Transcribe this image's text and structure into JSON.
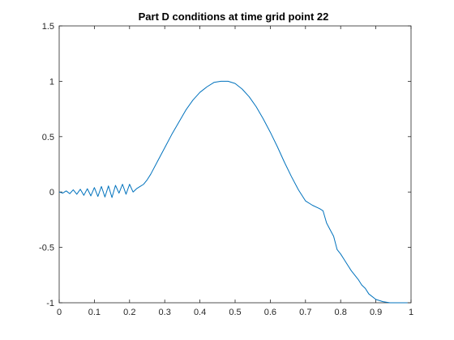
{
  "chart_data": {
    "type": "line",
    "title": "Part D conditions at time grid point 22",
    "xlabel": "",
    "ylabel": "",
    "xlim": [
      0,
      1
    ],
    "ylim": [
      -1,
      1.5
    ],
    "grid": false,
    "x_ticks": [
      0,
      0.1,
      0.2,
      0.3,
      0.4,
      0.5,
      0.6,
      0.7,
      0.8,
      0.9,
      1
    ],
    "x_tick_labels": [
      "0",
      "0.1",
      "0.2",
      "0.3",
      "0.4",
      "0.5",
      "0.6",
      "0.7",
      "0.8",
      "0.9",
      "1"
    ],
    "y_ticks": [
      -1,
      -0.5,
      0,
      0.5,
      1,
      1.5
    ],
    "y_tick_labels": [
      "-1",
      "-0.5",
      "0",
      "0.5",
      "1",
      "1.5"
    ],
    "line_color": "#0072BD",
    "series": [
      {
        "x": [
          0,
          0.01,
          0.02,
          0.03,
          0.04,
          0.05,
          0.06,
          0.07,
          0.08,
          0.09,
          0.1,
          0.11,
          0.12,
          0.13,
          0.14,
          0.15,
          0.16,
          0.17,
          0.18,
          0.19,
          0.2,
          0.21,
          0.22,
          0.23,
          0.24,
          0.25,
          0.26,
          0.28,
          0.3,
          0.32,
          0.34,
          0.36,
          0.38,
          0.4,
          0.42,
          0.44,
          0.46,
          0.48,
          0.5,
          0.52,
          0.54,
          0.56,
          0.58,
          0.6,
          0.62,
          0.64,
          0.66,
          0.68,
          0.7,
          0.72,
          0.74,
          0.75,
          0.76,
          0.77,
          0.78,
          0.79,
          0.8,
          0.81,
          0.82,
          0.83,
          0.84,
          0.85,
          0.86,
          0.87,
          0.88,
          0.9,
          0.92,
          0.94,
          0.96,
          0.98,
          0.99
        ],
        "y": [
          0.0,
          -0.01,
          0.01,
          -0.015,
          0.02,
          -0.02,
          0.025,
          -0.03,
          0.03,
          -0.035,
          0.04,
          -0.04,
          0.05,
          -0.045,
          0.055,
          -0.05,
          0.06,
          -0.01,
          0.07,
          -0.02,
          0.07,
          0.0,
          0.03,
          0.05,
          0.07,
          0.11,
          0.16,
          0.28,
          0.4,
          0.52,
          0.63,
          0.74,
          0.83,
          0.9,
          0.95,
          0.99,
          1.0,
          1.0,
          0.98,
          0.93,
          0.86,
          0.77,
          0.66,
          0.54,
          0.41,
          0.27,
          0.14,
          0.02,
          -0.08,
          -0.12,
          -0.15,
          -0.17,
          -0.28,
          -0.34,
          -0.4,
          -0.52,
          -0.56,
          -0.61,
          -0.66,
          -0.71,
          -0.75,
          -0.79,
          -0.84,
          -0.87,
          -0.92,
          -0.97,
          -0.99,
          -1.0,
          -1.0,
          -1.0,
          -1.0
        ]
      }
    ]
  }
}
